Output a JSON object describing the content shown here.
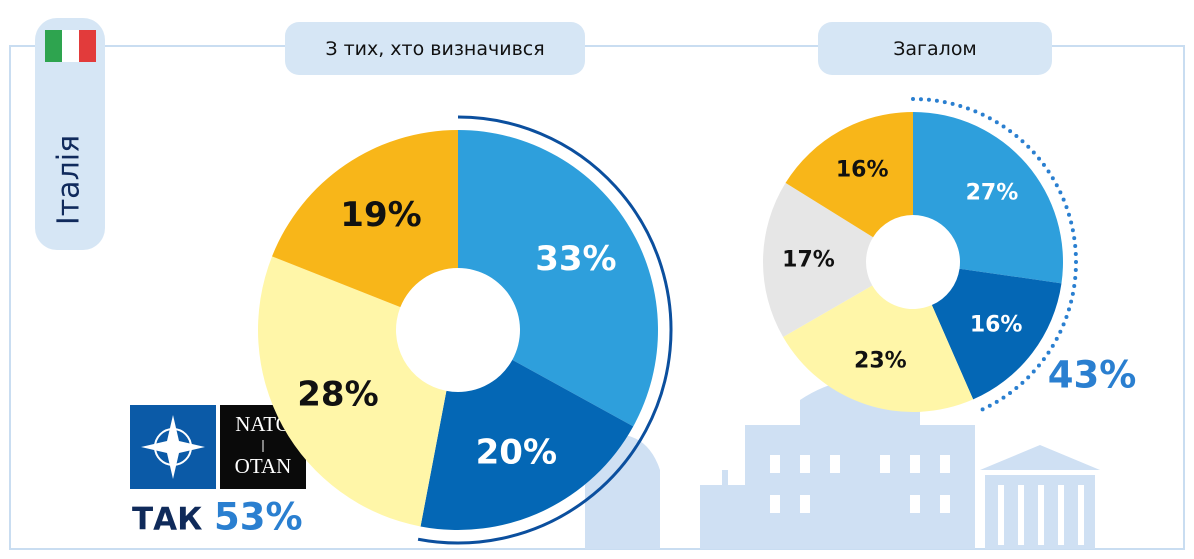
{
  "country": "Італія",
  "logo": {
    "top": "NATO",
    "bottom": "OTAN"
  },
  "chart_data": [
    {
      "type": "donut",
      "title": "З тих, хто визначився",
      "values": [
        33,
        20,
        28,
        19
      ],
      "value_labels": [
        "33%",
        "20%",
        "28%",
        "19%"
      ],
      "colors": [
        "#2e9fdc",
        "#0467b5",
        "#fff6a8",
        "#f8b619"
      ],
      "highlight": {
        "label": "ТАК",
        "value": 53,
        "value_label": "53%"
      }
    },
    {
      "type": "donut",
      "title": "Загалом",
      "values": [
        27,
        16,
        23,
        17,
        16
      ],
      "value_labels": [
        "27%",
        "16%",
        "23%",
        "17%",
        "16%"
      ],
      "colors": [
        "#2e9fdc",
        "#0467b5",
        "#fff6a8",
        "#e6e6e6",
        "#f8b619"
      ],
      "highlight": {
        "value": 43,
        "value_label": "43%"
      }
    }
  ]
}
